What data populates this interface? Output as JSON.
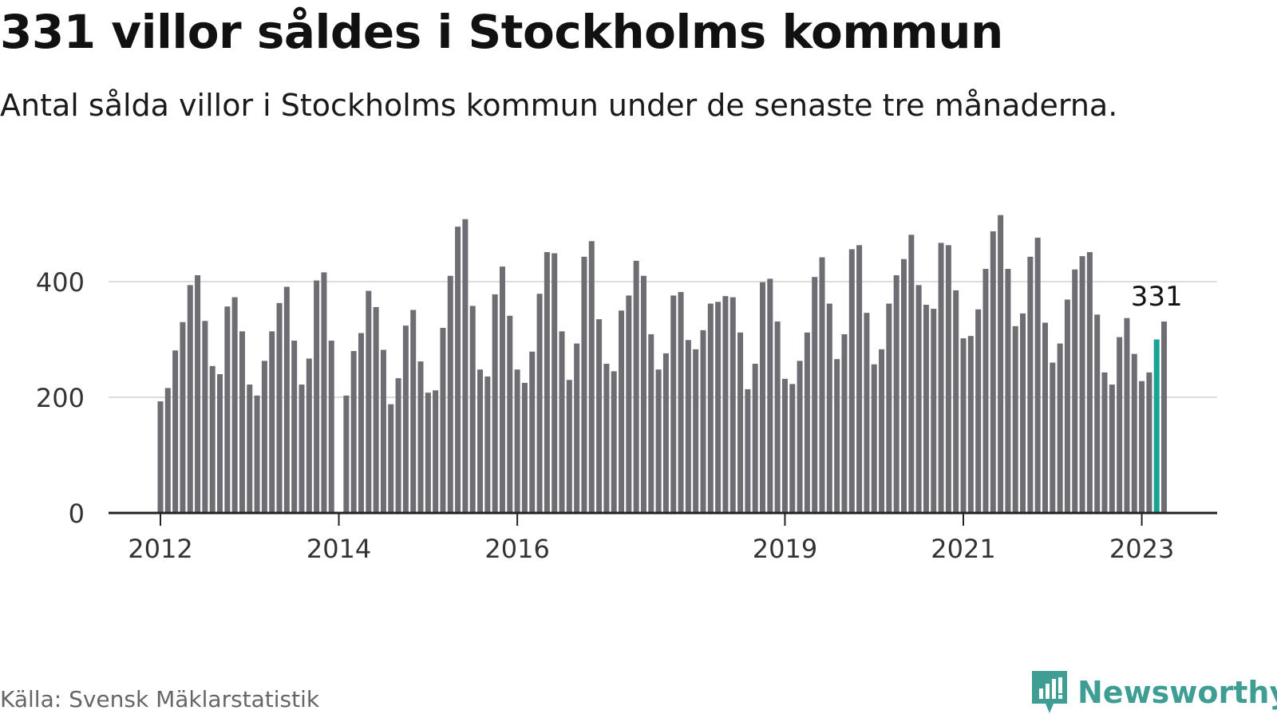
{
  "header": {
    "title": "331 villor såldes i Stockholms kommun",
    "subtitle": "Antal sålda villor i Stockholms kommun under de senaste tre månaderna."
  },
  "footer": {
    "source": "Källa: Svensk Mäklarstatistik",
    "brand": "Newsworthy"
  },
  "colors": {
    "bar": "#6e6d73",
    "highlight": "#1aa394",
    "grid": "#dddddd",
    "axis": "#222222",
    "brand": "#3e9e94"
  },
  "chart_data": {
    "type": "bar",
    "title": "331 villor såldes i Stockholms kommun",
    "subtitle": "Antal sålda villor i Stockholms kommun under de senaste tre månaderna.",
    "xlabel": "",
    "ylabel": "",
    "ylim": [
      0,
      530
    ],
    "yticks": [
      0,
      200,
      400
    ],
    "grid": true,
    "x_start_month": "2012-01",
    "xtick_labels": [
      {
        "label": "2012",
        "month": "2012-01"
      },
      {
        "label": "2014",
        "month": "2014-01"
      },
      {
        "label": "2016",
        "month": "2016-01"
      },
      {
        "label": "2019",
        "month": "2019-01"
      },
      {
        "label": "2021",
        "month": "2021-01"
      },
      {
        "label": "2023",
        "month": "2023-01"
      }
    ],
    "highlight": {
      "month": "2023-03",
      "value": 331,
      "label": "331"
    },
    "values": [
      193,
      216,
      281,
      330,
      394,
      411,
      332,
      254,
      240,
      357,
      373,
      314,
      222,
      203,
      263,
      314,
      363,
      391,
      298,
      222,
      267,
      402,
      416,
      298,
      0,
      203,
      280,
      311,
      384,
      356,
      282,
      188,
      233,
      324,
      351,
      262,
      208,
      212,
      320,
      410,
      495,
      508,
      358,
      248,
      236,
      378,
      426,
      341,
      248,
      225,
      279,
      379,
      451,
      449,
      314,
      230,
      293,
      443,
      470,
      335,
      258,
      245,
      350,
      376,
      436,
      410,
      309,
      248,
      276,
      376,
      382,
      299,
      283,
      316,
      362,
      365,
      375,
      373,
      312,
      214,
      258,
      399,
      405,
      331,
      232,
      223,
      263,
      312,
      408,
      442,
      362,
      266,
      309,
      456,
      463,
      346,
      257,
      283,
      362,
      411,
      439,
      481,
      394,
      360,
      353,
      467,
      463,
      385,
      302,
      306,
      352,
      422,
      487,
      515,
      422,
      323,
      345,
      443,
      476,
      329,
      260,
      293,
      369,
      421,
      444,
      451,
      343,
      243,
      222,
      304,
      337,
      275,
      228,
      243,
      300,
      331
    ]
  }
}
